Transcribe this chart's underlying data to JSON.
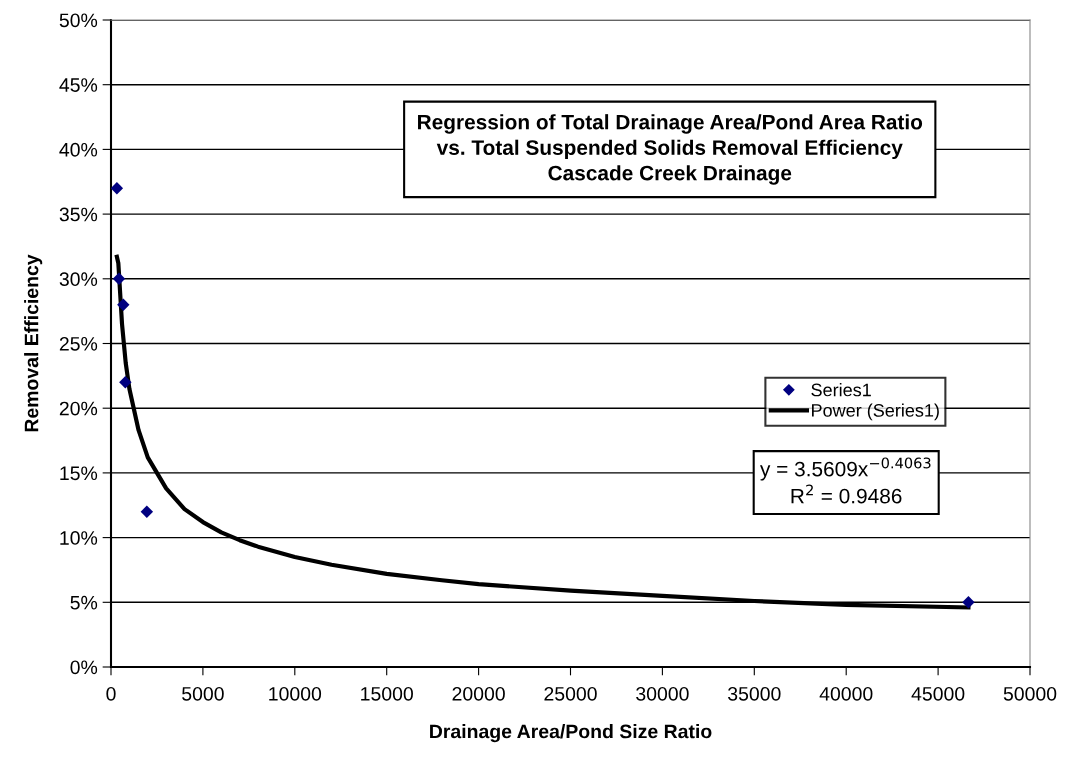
{
  "chart_data": {
    "type": "scatter",
    "title": "Regression of Total Drainage Area/Pond Area Ratio\nvs. Total Suspended Solids Removal Efficiency\nCascade Creek Drainage",
    "xlabel": "Drainage Area/Pond Size Ratio",
    "ylabel": "Removal Efficiency",
    "series": [
      {
        "name": "Series1",
        "color": "#000080",
        "marker": "diamond",
        "x": [
          320,
          435,
          670,
          780,
          1950,
          46650
        ],
        "values": [
          37,
          30,
          28,
          22,
          12,
          5
        ]
      },
      {
        "name": "Power (Series1)",
        "type": "line",
        "color": "#000000",
        "marker": "none",
        "line_style": "solid",
        "x": [
          320,
          400,
          600,
          800,
          1000,
          1500,
          2000,
          3000,
          4000,
          5000,
          6000,
          7000,
          8000,
          10000,
          12000,
          15000,
          18000,
          20000,
          25000,
          30000,
          35000,
          40000,
          46650
        ],
        "values": [
          31.7,
          31.2,
          26.5,
          23.5,
          21.5,
          18.3,
          16.2,
          13.8,
          12.2,
          11.2,
          10.4,
          9.8,
          9.3,
          8.5,
          7.9,
          7.2,
          6.7,
          6.4,
          5.9,
          5.5,
          5.1,
          4.8,
          4.6
        ]
      }
    ],
    "annotations": [
      "y = 3.5609x$^{−0.4063}$\nR$^{2}$ = 0.9486"
    ],
    "xlim": [
      0,
      50000
    ],
    "xticks": [
      0,
      5000,
      10000,
      15000,
      20000,
      25000,
      30000,
      35000,
      40000,
      45000,
      50000
    ],
    "ylim": [
      0,
      50
    ],
    "yticks": [
      {
        "value": 0,
        "label": "0%"
      },
      {
        "value": 5,
        "label": "5%"
      },
      {
        "value": 10,
        "label": "10%"
      },
      {
        "value": 15,
        "label": "15%"
      },
      {
        "value": 20,
        "label": "20%"
      },
      {
        "value": 25,
        "label": "25%"
      },
      {
        "value": 30,
        "label": "30%"
      },
      {
        "value": 35,
        "label": "35%"
      },
      {
        "value": 40,
        "label": "40%"
      },
      {
        "value": 45,
        "label": "45%"
      },
      {
        "value": 50,
        "label": "50%"
      }
    ],
    "grid": "y",
    "legend": "right"
  }
}
